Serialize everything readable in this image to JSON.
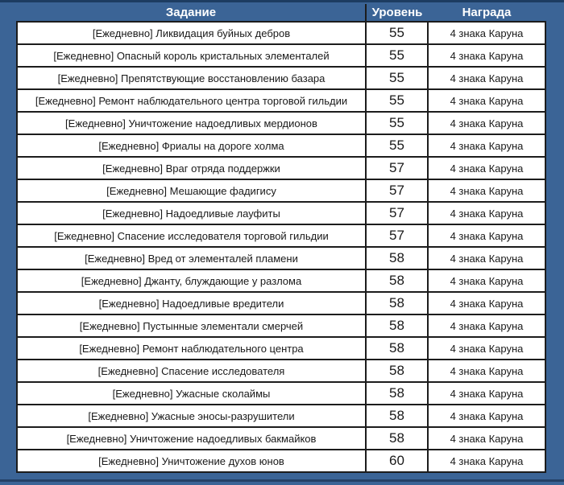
{
  "table": {
    "columns": [
      {
        "key": "task",
        "label": "Задание"
      },
      {
        "key": "level",
        "label": "Уровень"
      },
      {
        "key": "reward",
        "label": "Награда"
      }
    ],
    "rows": [
      {
        "task": "[Ежедневно] Ликвидация буйных дебров",
        "level": "55",
        "reward": "4 знака Каруна"
      },
      {
        "task": "[Ежедневно] Опасный король кристальных элементалей",
        "level": "55",
        "reward": "4 знака Каруна"
      },
      {
        "task": "[Ежедневно] Препятствующие восстановлению базара",
        "level": "55",
        "reward": "4 знака Каруна"
      },
      {
        "task": "[Ежедневно] Ремонт наблюдательного центра торговой гильдии",
        "level": "55",
        "reward": "4 знака Каруна"
      },
      {
        "task": "[Ежедневно] Уничтожение надоедливых мердионов",
        "level": "55",
        "reward": "4 знака Каруна"
      },
      {
        "task": "[Ежедневно] Фриалы на дороге холма",
        "level": "55",
        "reward": "4 знака Каруна"
      },
      {
        "task": "[Ежедневно] Враг отряда поддержки",
        "level": "57",
        "reward": "4 знака Каруна"
      },
      {
        "task": "[Ежедневно] Мешающие фадигису",
        "level": "57",
        "reward": "4 знака Каруна"
      },
      {
        "task": "[Ежедневно] Надоедливые лауфиты",
        "level": "57",
        "reward": "4 знака Каруна"
      },
      {
        "task": "[Ежедневно] Спасение исследователя торговой гильдии",
        "level": "57",
        "reward": "4 знака Каруна"
      },
      {
        "task": "[Ежедневно] Вред от элементалей пламени",
        "level": "58",
        "reward": "4 знака Каруна"
      },
      {
        "task": "[Ежедневно] Джанту, блуждающие у разлома",
        "level": "58",
        "reward": "4 знака Каруна"
      },
      {
        "task": "[Ежедневно] Надоедливые вредители",
        "level": "58",
        "reward": "4 знака Каруна"
      },
      {
        "task": "[Ежедневно] Пустынные элементали смерчей",
        "level": "58",
        "reward": "4 знака Каруна"
      },
      {
        "task": "[Ежедневно] Ремонт наблюдательного центра",
        "level": "58",
        "reward": "4 знака Каруна"
      },
      {
        "task": "[Ежедневно] Спасение исследователя",
        "level": "58",
        "reward": "4 знака Каруна"
      },
      {
        "task": "[Ежедневно] Ужасные сколаймы",
        "level": "58",
        "reward": "4 знака Каруна"
      },
      {
        "task": "[Ежедневно] Ужасные эносы-разрушители",
        "level": "58",
        "reward": "4 знака Каруна"
      },
      {
        "task": "[Ежедневно] Уничтожение надоедливых бакмайков",
        "level": "58",
        "reward": "4 знака Каруна"
      },
      {
        "task": "[Ежедневно] Уничтожение духов юнов",
        "level": "60",
        "reward": "4 знака Каруна"
      }
    ]
  },
  "colors": {
    "frame_blue": "#3b6496",
    "frame_edge_dark": "#1d3c61",
    "cell_border": "#1c1c1c",
    "cell_background": "#ffffff",
    "cell_text": "#191919",
    "header_text": "#ffffff"
  }
}
